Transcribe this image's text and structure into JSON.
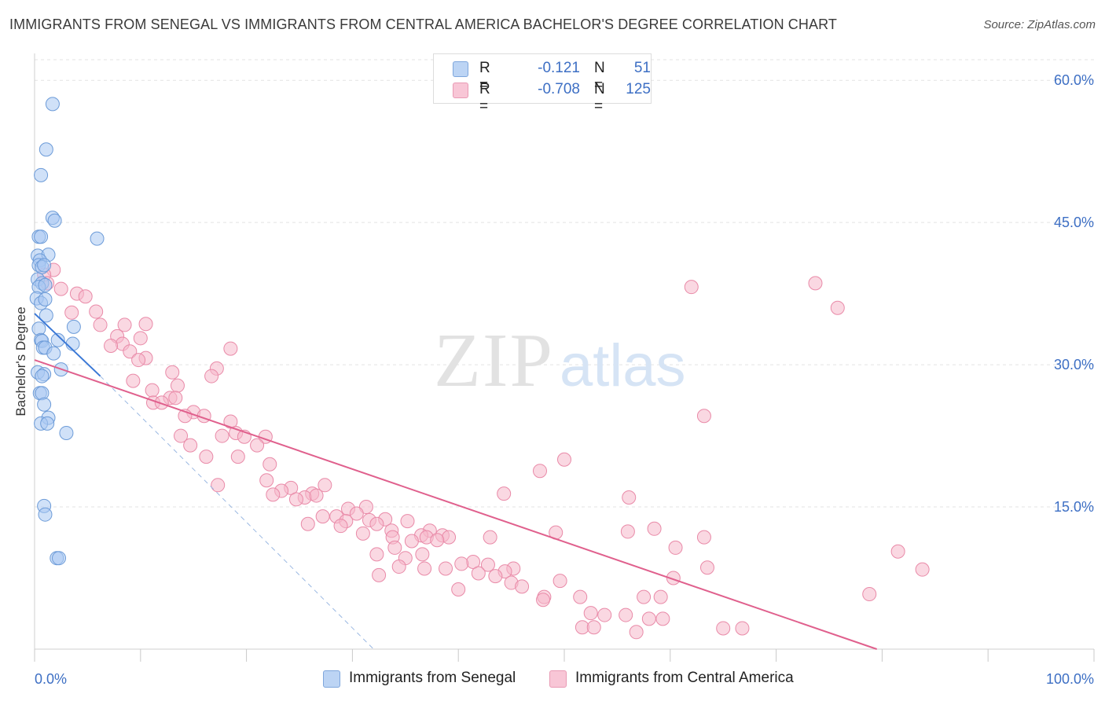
{
  "title": "IMMIGRANTS FROM SENEGAL VS IMMIGRANTS FROM CENTRAL AMERICA BACHELOR'S DEGREE CORRELATION CHART",
  "source": "Source: ZipAtlas.com",
  "watermark": {
    "zip": "ZIP",
    "atlas": "atlas"
  },
  "legend": {
    "rows": [
      {
        "r_label": "R =",
        "r_value": "-0.121",
        "n_label": "N =",
        "n_value": "51"
      },
      {
        "r_label": "R =",
        "r_value": "-0.708",
        "n_label": "N =",
        "n_value": "125"
      }
    ]
  },
  "chart_data": {
    "type": "scatter",
    "title": "IMMIGRANTS FROM SENEGAL VS IMMIGRANTS FROM CENTRAL AMERICA BACHELOR'S DEGREE CORRELATION CHART",
    "xlabel": "",
    "ylabel": "Bachelor's Degree",
    "xlim": [
      0,
      100
    ],
    "ylim": [
      0,
      63
    ],
    "x_tick_labels": [
      "0.0%",
      "100.0%"
    ],
    "y_ticks": [
      15,
      30,
      45,
      60
    ],
    "y_tick_labels": [
      "15.0%",
      "30.0%",
      "45.0%",
      "60.0%"
    ],
    "grid": true,
    "legend_position": "top-center",
    "series": [
      {
        "name": "Immigrants from Senegal",
        "color": "#a9c8f2",
        "edge_color": "#6c9bd8",
        "line_color": "#3a78d6",
        "trend": {
          "x0": 0.0,
          "y0": 35.4,
          "x1": 6.2,
          "y1": 28.8,
          "dashed_to_x": 32.0,
          "dashed_to_y": 0.0
        },
        "points": [
          [
            1.7,
            57.5
          ],
          [
            1.1,
            52.7
          ],
          [
            0.6,
            50.0
          ],
          [
            1.7,
            45.5
          ],
          [
            1.9,
            45.2
          ],
          [
            0.4,
            43.5
          ],
          [
            0.6,
            43.5
          ],
          [
            5.9,
            43.3
          ],
          [
            0.3,
            41.5
          ],
          [
            1.3,
            41.6
          ],
          [
            0.5,
            41.0
          ],
          [
            0.4,
            40.5
          ],
          [
            0.7,
            40.3
          ],
          [
            0.9,
            40.5
          ],
          [
            0.3,
            39.0
          ],
          [
            0.7,
            38.6
          ],
          [
            0.4,
            38.2
          ],
          [
            1.0,
            38.4
          ],
          [
            0.2,
            37.0
          ],
          [
            0.6,
            36.5
          ],
          [
            1.0,
            36.9
          ],
          [
            1.1,
            35.2
          ],
          [
            3.7,
            34.0
          ],
          [
            0.4,
            33.8
          ],
          [
            0.6,
            32.6
          ],
          [
            0.7,
            32.5
          ],
          [
            2.2,
            32.6
          ],
          [
            3.6,
            32.2
          ],
          [
            0.8,
            31.8
          ],
          [
            1.0,
            31.8
          ],
          [
            1.8,
            31.2
          ],
          [
            2.5,
            29.5
          ],
          [
            0.3,
            29.2
          ],
          [
            0.9,
            29.0
          ],
          [
            0.7,
            28.8
          ],
          [
            0.5,
            27.0
          ],
          [
            0.7,
            27.0
          ],
          [
            0.9,
            25.8
          ],
          [
            1.3,
            24.4
          ],
          [
            0.6,
            23.8
          ],
          [
            1.2,
            23.8
          ],
          [
            3.0,
            22.8
          ],
          [
            0.9,
            15.1
          ],
          [
            1.0,
            14.2
          ],
          [
            2.1,
            9.6
          ],
          [
            2.3,
            9.6
          ]
        ]
      },
      {
        "name": "Immigrants from Central America",
        "color": "#f6b8cb",
        "edge_color": "#e98aa8",
        "line_color": "#e0608d",
        "trend": {
          "x0": 0.0,
          "y0": 30.5,
          "x1": 79.5,
          "y1": 0.0
        },
        "points": [
          [
            1.8,
            40.0
          ],
          [
            0.9,
            39.5
          ],
          [
            1.2,
            38.6
          ],
          [
            2.5,
            38.0
          ],
          [
            4.0,
            37.5
          ],
          [
            4.8,
            37.2
          ],
          [
            3.5,
            35.5
          ],
          [
            5.8,
            35.6
          ],
          [
            8.5,
            34.2
          ],
          [
            10.5,
            34.3
          ],
          [
            6.2,
            34.2
          ],
          [
            7.8,
            33.0
          ],
          [
            8.3,
            32.2
          ],
          [
            10.0,
            32.8
          ],
          [
            7.2,
            32.0
          ],
          [
            9.0,
            31.4
          ],
          [
            10.5,
            30.7
          ],
          [
            9.8,
            30.5
          ],
          [
            13.0,
            29.2
          ],
          [
            18.5,
            31.7
          ],
          [
            17.2,
            29.6
          ],
          [
            16.7,
            28.8
          ],
          [
            9.3,
            28.3
          ],
          [
            13.5,
            27.8
          ],
          [
            11.1,
            27.3
          ],
          [
            12.8,
            26.5
          ],
          [
            11.2,
            26.0
          ],
          [
            12.0,
            26.0
          ],
          [
            13.3,
            26.5
          ],
          [
            15.0,
            25.0
          ],
          [
            16.0,
            24.6
          ],
          [
            14.2,
            24.6
          ],
          [
            18.5,
            24.0
          ],
          [
            13.8,
            22.5
          ],
          [
            17.7,
            22.5
          ],
          [
            19.0,
            22.8
          ],
          [
            19.8,
            22.4
          ],
          [
            21.8,
            22.4
          ],
          [
            21.0,
            21.5
          ],
          [
            14.7,
            21.5
          ],
          [
            16.2,
            20.3
          ],
          [
            19.2,
            20.3
          ],
          [
            22.2,
            19.5
          ],
          [
            21.9,
            17.8
          ],
          [
            24.2,
            17.0
          ],
          [
            17.3,
            17.3
          ],
          [
            23.3,
            16.7
          ],
          [
            26.2,
            16.4
          ],
          [
            25.5,
            16.0
          ],
          [
            22.5,
            16.3
          ],
          [
            27.4,
            17.3
          ],
          [
            26.6,
            16.2
          ],
          [
            24.7,
            15.8
          ],
          [
            29.6,
            14.8
          ],
          [
            31.3,
            15.0
          ],
          [
            27.2,
            14.0
          ],
          [
            30.4,
            14.3
          ],
          [
            28.5,
            14.0
          ],
          [
            31.6,
            13.6
          ],
          [
            25.8,
            13.2
          ],
          [
            29.4,
            13.5
          ],
          [
            33.1,
            13.7
          ],
          [
            32.3,
            13.2
          ],
          [
            28.9,
            13.0
          ],
          [
            35.2,
            13.5
          ],
          [
            33.7,
            12.5
          ],
          [
            31.0,
            12.2
          ],
          [
            37.3,
            12.5
          ],
          [
            36.5,
            12.0
          ],
          [
            33.8,
            11.8
          ],
          [
            38.5,
            12.0
          ],
          [
            37.0,
            11.8
          ],
          [
            39.1,
            11.8
          ],
          [
            43.0,
            11.8
          ],
          [
            35.6,
            11.4
          ],
          [
            38.0,
            11.5
          ],
          [
            34.0,
            10.7
          ],
          [
            32.3,
            10.0
          ],
          [
            36.6,
            10.0
          ],
          [
            35.0,
            9.6
          ],
          [
            36.8,
            8.5
          ],
          [
            34.4,
            8.7
          ],
          [
            41.4,
            9.2
          ],
          [
            40.3,
            9.0
          ],
          [
            38.8,
            8.5
          ],
          [
            42.8,
            8.9
          ],
          [
            45.2,
            8.5
          ],
          [
            44.4,
            8.2
          ],
          [
            41.9,
            8.0
          ],
          [
            43.5,
            7.7
          ],
          [
            32.5,
            7.8
          ],
          [
            45.0,
            7.0
          ],
          [
            49.6,
            7.2
          ],
          [
            40.0,
            6.3
          ],
          [
            48.1,
            5.5
          ],
          [
            48.0,
            5.2
          ],
          [
            51.5,
            5.5
          ],
          [
            46.0,
            6.6
          ],
          [
            52.5,
            3.8
          ],
          [
            53.8,
            3.6
          ],
          [
            55.8,
            3.6
          ],
          [
            57.5,
            5.5
          ],
          [
            59.1,
            5.5
          ],
          [
            58.0,
            3.2
          ],
          [
            59.3,
            3.2
          ],
          [
            51.7,
            2.3
          ],
          [
            52.8,
            2.3
          ],
          [
            56.8,
            1.8
          ],
          [
            65.0,
            2.2
          ],
          [
            66.8,
            2.2
          ],
          [
            56.1,
            16.0
          ],
          [
            56.0,
            12.4
          ],
          [
            58.5,
            12.7
          ],
          [
            60.5,
            10.7
          ],
          [
            63.2,
            11.8
          ],
          [
            60.3,
            7.5
          ],
          [
            63.5,
            8.6
          ],
          [
            63.2,
            24.6
          ],
          [
            62.0,
            38.2
          ],
          [
            73.7,
            38.6
          ],
          [
            75.8,
            36.0
          ],
          [
            49.2,
            12.3
          ],
          [
            78.8,
            5.8
          ],
          [
            81.5,
            10.3
          ],
          [
            83.8,
            8.4
          ],
          [
            44.3,
            16.4
          ],
          [
            47.7,
            18.8
          ],
          [
            50.0,
            20.0
          ]
        ]
      }
    ]
  }
}
